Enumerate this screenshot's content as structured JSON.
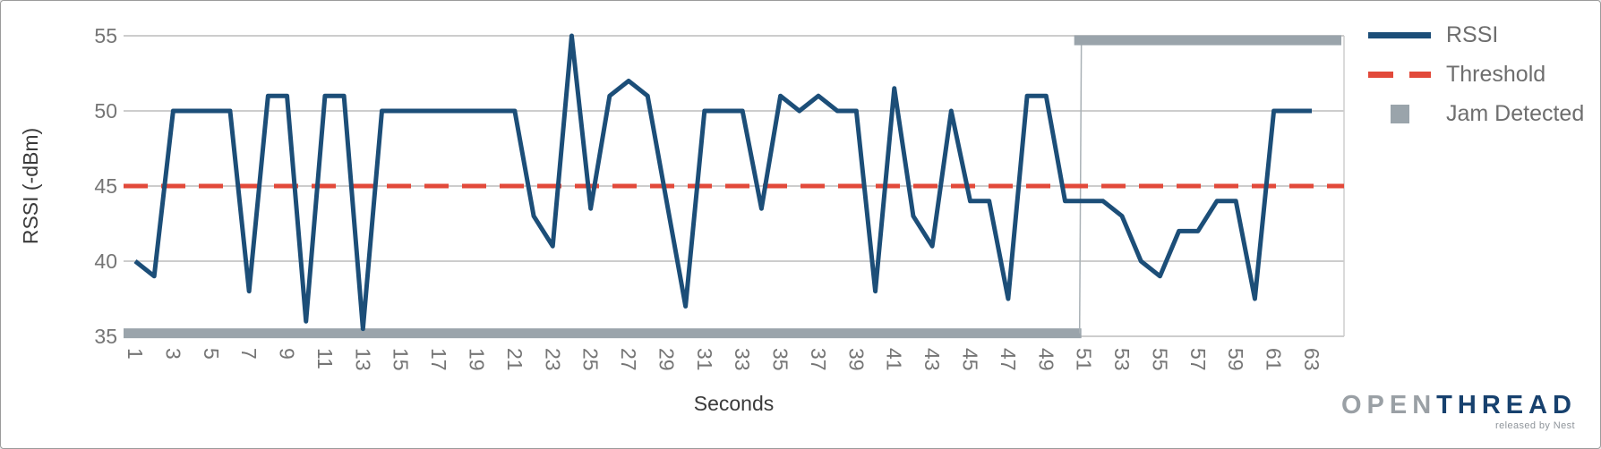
{
  "chart_data": {
    "type": "line",
    "title": "",
    "xlabel": "Seconds",
    "ylabel": "RSSI (-dBm)",
    "xlim": [
      1,
      63
    ],
    "ylim": [
      35,
      55
    ],
    "grid": "horizontal",
    "legend_position": "right-outside",
    "yticks": [
      55,
      50,
      45,
      40,
      35
    ],
    "xticks": [
      1,
      3,
      5,
      7,
      9,
      11,
      13,
      15,
      17,
      19,
      21,
      23,
      25,
      27,
      29,
      31,
      33,
      35,
      37,
      39,
      41,
      43,
      45,
      47,
      49,
      51,
      53,
      55,
      57,
      59,
      61,
      63
    ],
    "x": [
      1,
      2,
      3,
      4,
      5,
      6,
      7,
      8,
      9,
      10,
      11,
      12,
      13,
      14,
      15,
      16,
      17,
      18,
      19,
      20,
      21,
      22,
      23,
      24,
      25,
      26,
      27,
      28,
      29,
      30,
      31,
      32,
      33,
      34,
      35,
      36,
      37,
      38,
      39,
      40,
      41,
      42,
      43,
      44,
      45,
      46,
      47,
      48,
      49,
      50,
      51,
      52,
      53,
      54,
      55,
      56,
      57,
      58,
      59,
      60,
      61,
      62,
      63
    ],
    "series": [
      {
        "name": "RSSI",
        "type": "line",
        "values": [
          40,
          39,
          50,
          50,
          50,
          50,
          38,
          51,
          51,
          36,
          51,
          51,
          35.5,
          50,
          50,
          50,
          50,
          50,
          50,
          50,
          50,
          43,
          41,
          55,
          43.5,
          51,
          52,
          51,
          44,
          37,
          50,
          50,
          50,
          43.5,
          51,
          50,
          51,
          50,
          50,
          38,
          51.5,
          43,
          41,
          50,
          44,
          44,
          37.5,
          51,
          51,
          44,
          44,
          44,
          43,
          40,
          39,
          42,
          42,
          44,
          44,
          37.5,
          50,
          50,
          50
        ]
      },
      {
        "name": "Threshold",
        "type": "horizontal-dashed-line",
        "value": 45
      },
      {
        "name": "Jam Detected",
        "type": "step-bar",
        "low_value": 35.2,
        "high_value": 54.7,
        "high_from_x": 51
      }
    ]
  },
  "axes": {
    "y_title": "RSSI (-dBm)",
    "x_title": "Seconds"
  },
  "legend": {
    "items": [
      {
        "label": "RSSI",
        "swatch": "solid-line"
      },
      {
        "label": "Threshold",
        "swatch": "dashed-line"
      },
      {
        "label": "Jam Detected",
        "swatch": "square"
      }
    ]
  },
  "logo": {
    "part1": "OPEN",
    "part2": "THREAD",
    "subtitle": "released by Nest"
  },
  "colors": {
    "rssi_line": "#1c4e78",
    "threshold_line": "#e2493a",
    "jam_bar": "#9aa4ab",
    "jam_connector": "#a9b1b6",
    "gridline": "#cdcdcd",
    "tick_text": "#757575",
    "axis_title_text": "#3a3a3a",
    "legend_text": "#6e6e6e",
    "logo_gray": "#9aa0a5",
    "logo_navy": "#17416e",
    "logo_sub_text": "#8f959b"
  }
}
